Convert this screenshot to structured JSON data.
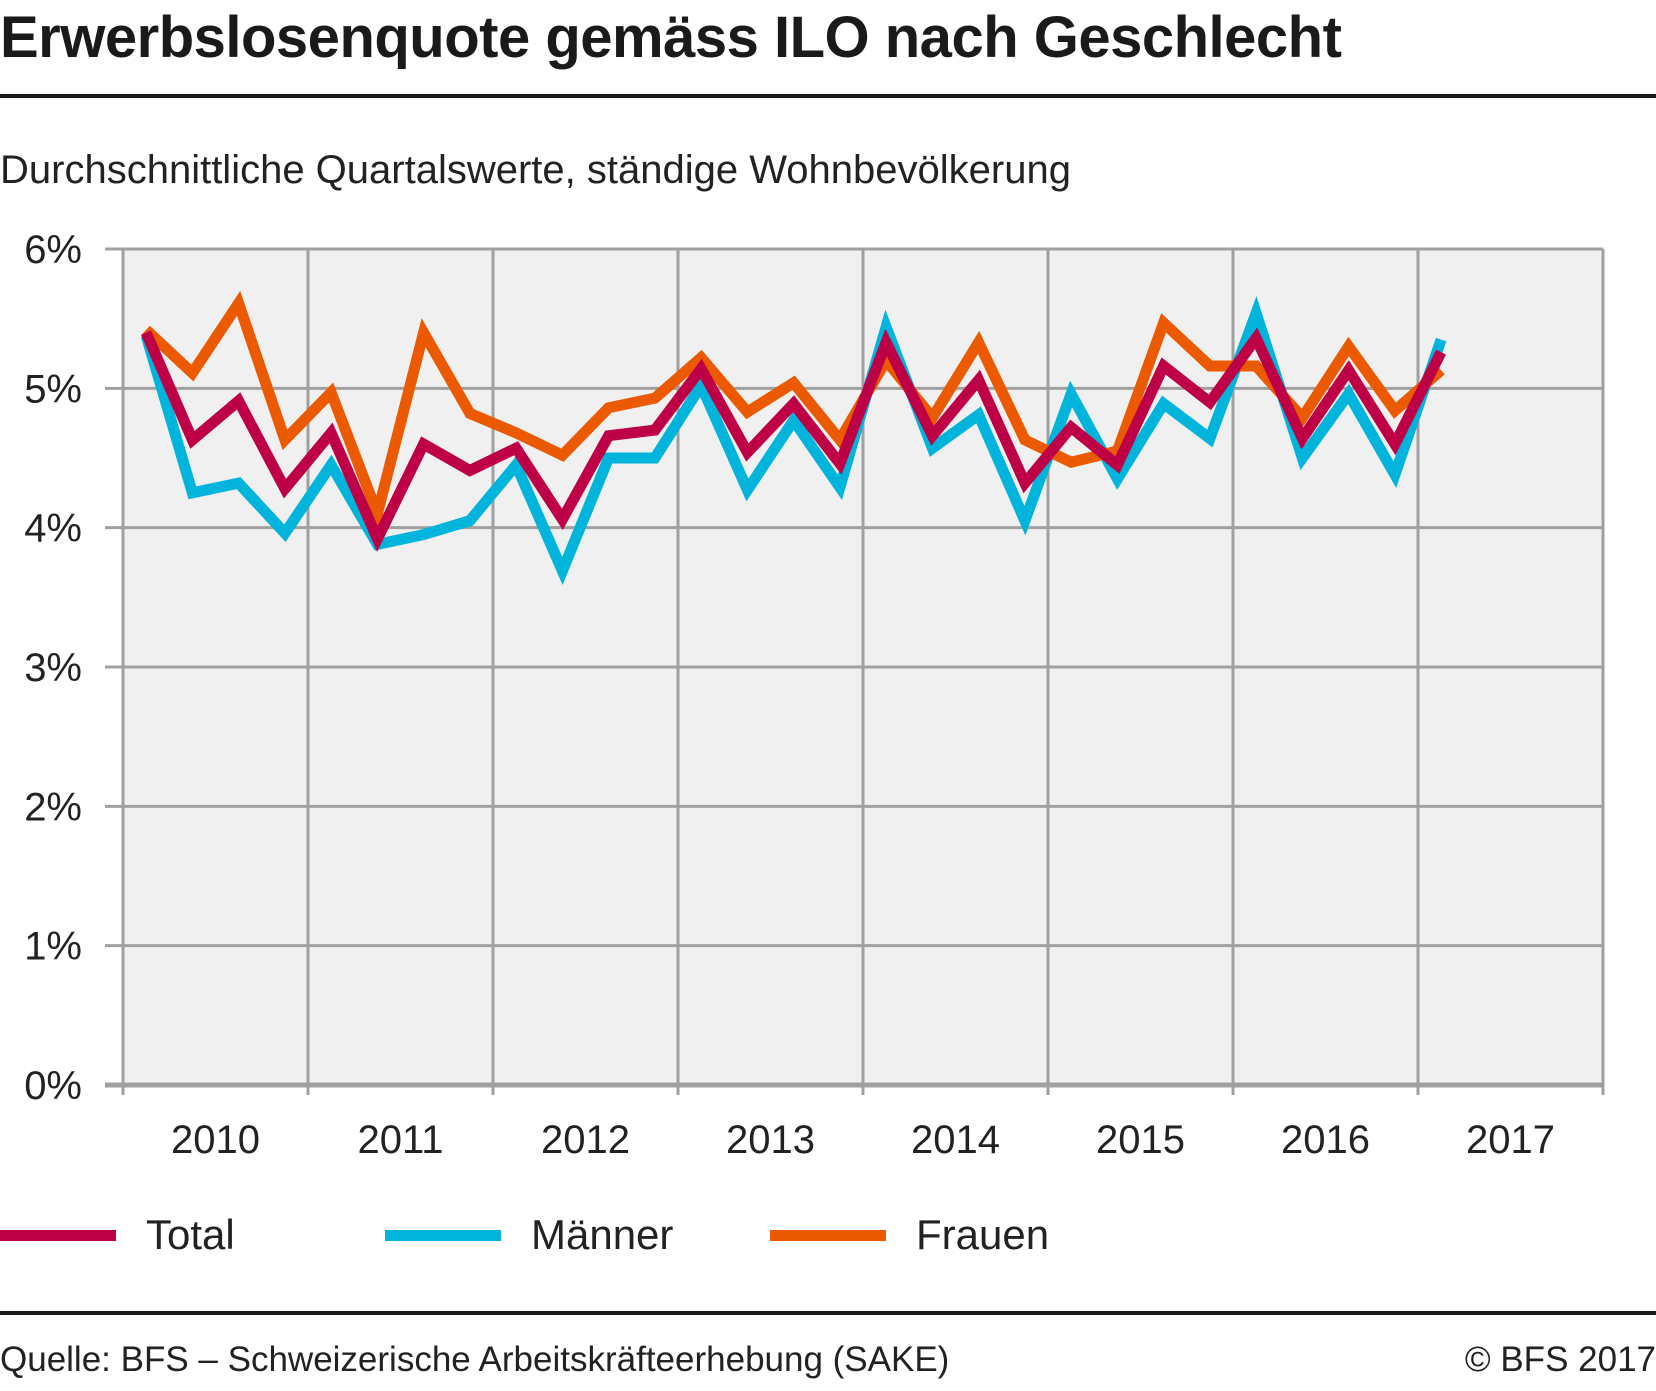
{
  "header": {
    "title": "Erwerbslosenquote gemäss ILO nach Geschlecht",
    "subtitle": "Durchschnittliche Quartalswerte, ständige Wohnbevölkerung"
  },
  "footer": {
    "source": "Quelle: BFS – Schweizerische Arbeitskräfteerhebung (SAKE)",
    "copyright": "© BFS 2017"
  },
  "chart_data": {
    "type": "line",
    "title": "Erwerbslosenquote gemäss ILO nach Geschlecht",
    "subtitle": "Durchschnittliche Quartalswerte, ständige Wohnbevölkerung",
    "xlabel": "",
    "ylabel": "",
    "ylim": [
      0,
      6
    ],
    "yticks": [
      0,
      1,
      2,
      3,
      4,
      5,
      6
    ],
    "ytick_labels": [
      "0%",
      "1%",
      "2%",
      "3%",
      "4%",
      "5%",
      "6%"
    ],
    "xticks": [
      "2010",
      "2011",
      "2012",
      "2013",
      "2014",
      "2015",
      "2016",
      "2017"
    ],
    "x_unit": "quarter",
    "x": [
      "2010Q1",
      "2010Q2",
      "2010Q3",
      "2010Q4",
      "2011Q1",
      "2011Q2",
      "2011Q3",
      "2011Q4",
      "2012Q1",
      "2012Q2",
      "2012Q3",
      "2012Q4",
      "2013Q1",
      "2013Q2",
      "2013Q3",
      "2013Q4",
      "2014Q1",
      "2014Q2",
      "2014Q3",
      "2014Q4",
      "2015Q1",
      "2015Q2",
      "2015Q3",
      "2015Q4",
      "2016Q1",
      "2016Q2",
      "2016Q3",
      "2016Q4",
      "2017Q1"
    ],
    "grid": true,
    "legend": "bottom-left",
    "series": [
      {
        "name": "Total",
        "color": "#BE0046",
        "values": [
          5.4,
          4.63,
          4.91,
          4.28,
          4.68,
          3.92,
          4.6,
          4.41,
          4.57,
          4.06,
          4.66,
          4.7,
          5.14,
          4.54,
          4.89,
          4.46,
          5.33,
          4.66,
          5.06,
          4.32,
          4.72,
          4.45,
          5.16,
          4.9,
          5.36,
          4.64,
          5.13,
          4.6,
          5.26
        ]
      },
      {
        "name": "Männer",
        "color": "#00B4DC",
        "values": [
          5.38,
          4.25,
          4.32,
          3.96,
          4.45,
          3.88,
          3.95,
          4.05,
          4.45,
          3.69,
          4.5,
          4.5,
          5.02,
          4.27,
          4.77,
          4.29,
          5.44,
          4.57,
          4.81,
          4.05,
          4.96,
          4.35,
          4.89,
          4.64,
          5.54,
          4.5,
          4.96,
          4.38,
          5.35
        ]
      },
      {
        "name": "Frauen",
        "color": "#EB5A00",
        "values": [
          5.42,
          5.11,
          5.61,
          4.63,
          4.97,
          4.1,
          5.4,
          4.82,
          4.68,
          4.52,
          4.86,
          4.93,
          5.22,
          4.83,
          5.04,
          4.63,
          5.2,
          4.79,
          5.33,
          4.63,
          4.47,
          4.55,
          5.47,
          5.16,
          5.16,
          4.79,
          5.3,
          4.84,
          5.13
        ]
      }
    ]
  },
  "style": {
    "plot_background": "#F0F0F0",
    "grid_color": "#A0A0A0"
  }
}
